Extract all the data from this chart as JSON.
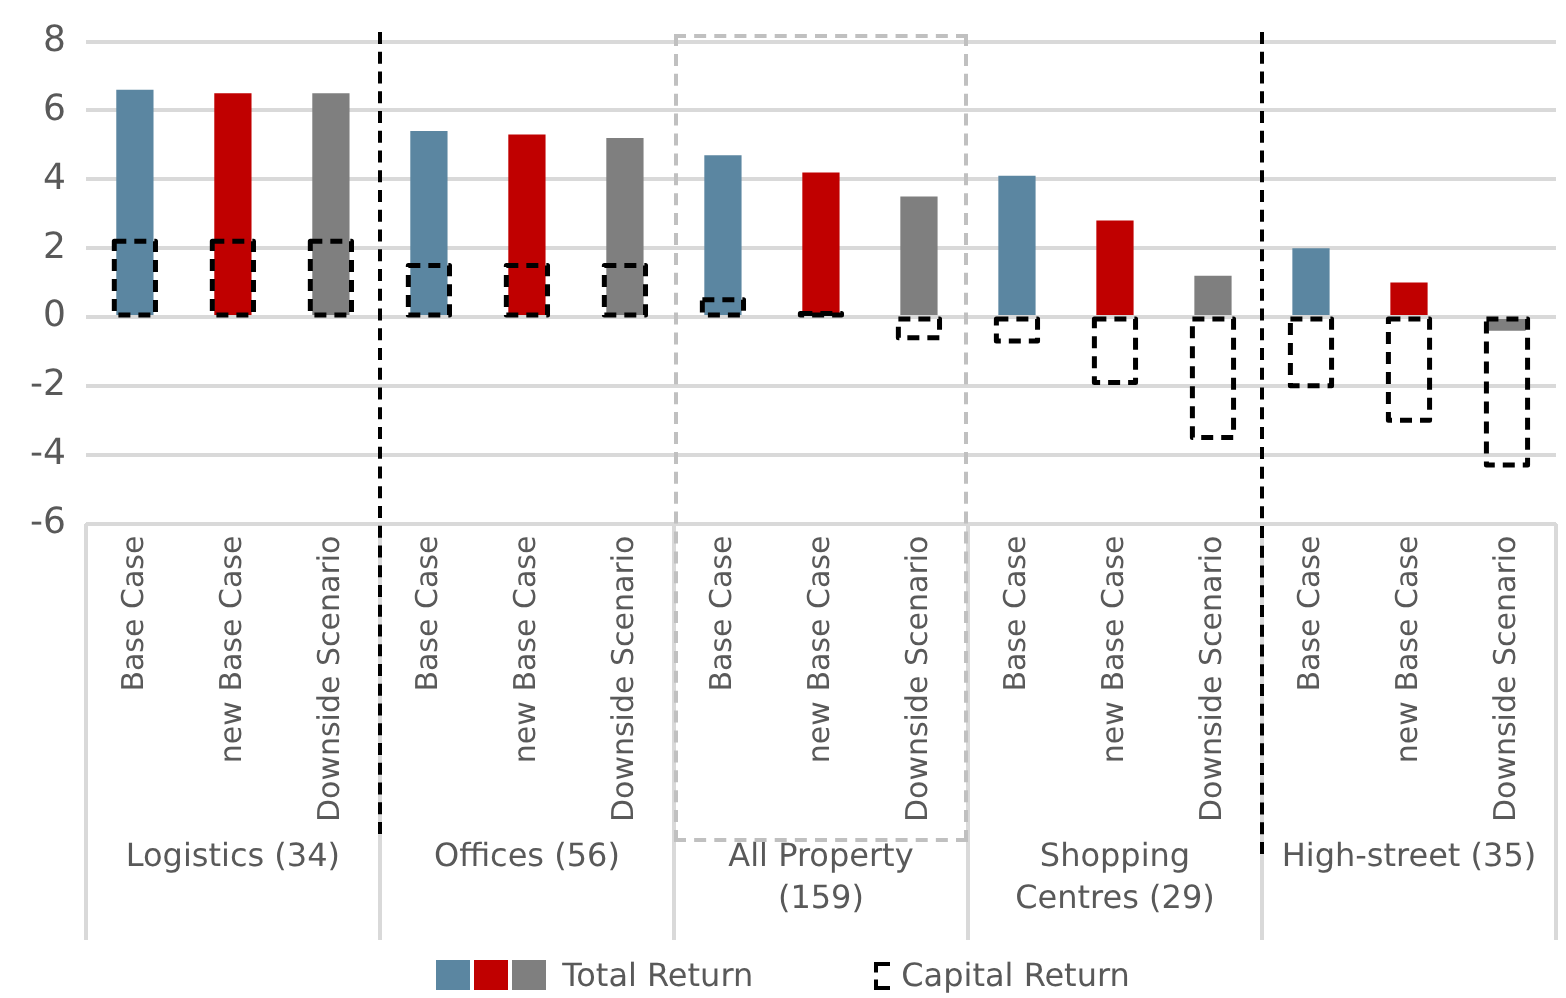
{
  "chart_data": {
    "type": "bar",
    "categories": [
      "Base Case",
      "new Base Case",
      "Downside Scenario",
      "Base Case",
      "new Base Case",
      "Downside Scenario",
      "Base Case",
      "new Base Case",
      "Downside Scenario",
      "Base Case",
      "new Base Case",
      "Downside Scenario",
      "Base Case",
      "new Base Case",
      "Downside Scenario"
    ],
    "series": [
      {
        "name": "Total Return",
        "colors": [
          "#5b86a1",
          "#c00000",
          "#7f7f7f",
          "#5b86a1",
          "#c00000",
          "#7f7f7f",
          "#5b86a1",
          "#c00000",
          "#7f7f7f",
          "#5b86a1",
          "#c00000",
          "#7f7f7f",
          "#5b86a1",
          "#c00000",
          "#7f7f7f"
        ],
        "values": [
          6.6,
          6.5,
          6.5,
          5.4,
          5.3,
          5.2,
          4.7,
          4.2,
          3.5,
          4.1,
          2.8,
          1.2,
          2.0,
          1.0,
          -0.4
        ]
      },
      {
        "name": "Capital Return",
        "color": "#000000",
        "line_style": "dashed",
        "values": [
          2.2,
          2.2,
          2.2,
          1.5,
          1.5,
          1.5,
          0.5,
          0.1,
          -0.6,
          -0.7,
          -1.9,
          -3.5,
          -2.0,
          -3.0,
          -4.3
        ]
      }
    ],
    "annotations": [
      "Logistics (34)",
      "Offices (56)",
      "All Property (159)",
      "Shopping Centres (29)",
      "High-street (35)"
    ],
    "ylim": [
      -6,
      8
    ],
    "yticks": [
      -6,
      -4,
      -2,
      0,
      2,
      4,
      6,
      8
    ],
    "grid": "y",
    "legend": "bottom"
  }
}
